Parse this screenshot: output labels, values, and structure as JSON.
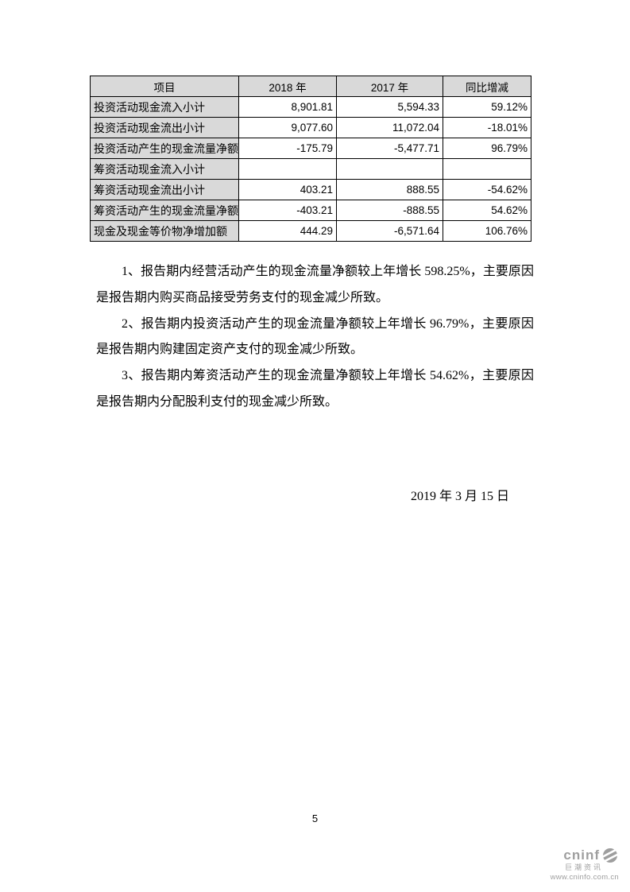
{
  "table": {
    "headers": [
      "项目",
      "2018 年",
      "2017 年",
      "同比增减"
    ],
    "rows": [
      {
        "label": "投资活动现金流入小计",
        "y2018": "8,901.81",
        "y2017": "5,594.33",
        "change": "59.12%"
      },
      {
        "label": "投资活动现金流出小计",
        "y2018": "9,077.60",
        "y2017": "11,072.04",
        "change": "-18.01%"
      },
      {
        "label": "投资活动产生的现金流量净额",
        "y2018": "-175.79",
        "y2017": "-5,477.71",
        "change": "96.79%"
      },
      {
        "label": "筹资活动现金流入小计",
        "y2018": "",
        "y2017": "",
        "change": ""
      },
      {
        "label": "筹资活动现金流出小计",
        "y2018": "403.21",
        "y2017": "888.55",
        "change": "-54.62%"
      },
      {
        "label": "筹资活动产生的现金流量净额",
        "y2018": "-403.21",
        "y2017": "-888.55",
        "change": "54.62%"
      },
      {
        "label": "现金及现金等价物净增加额",
        "y2018": "444.29",
        "y2017": "-6,571.64",
        "change": "106.76%"
      }
    ]
  },
  "paragraphs": [
    "1、报告期内经营活动产生的现金流量净额较上年增长 598.25%，主要原因是报告期内购买商品接受劳务支付的现金减少所致。",
    "2、报告期内投资活动产生的现金流量净额较上年增长 96.79%，主要原因是报告期内购建固定资产支付的现金减少所致。",
    "3、报告期内筹资活动产生的现金流量净额较上年增长 54.62%，主要原因是报告期内分配股利支付的现金减少所致。"
  ],
  "date": "2019 年 3 月 15 日",
  "page_number": "5",
  "footer_logo": {
    "brand": "cninf",
    "name_cn": "巨潮资讯",
    "url": "www.cninfo.com.cn"
  },
  "colors": {
    "table_shading": "#d9d9d9",
    "logo_gray": "#9e9e9e"
  }
}
